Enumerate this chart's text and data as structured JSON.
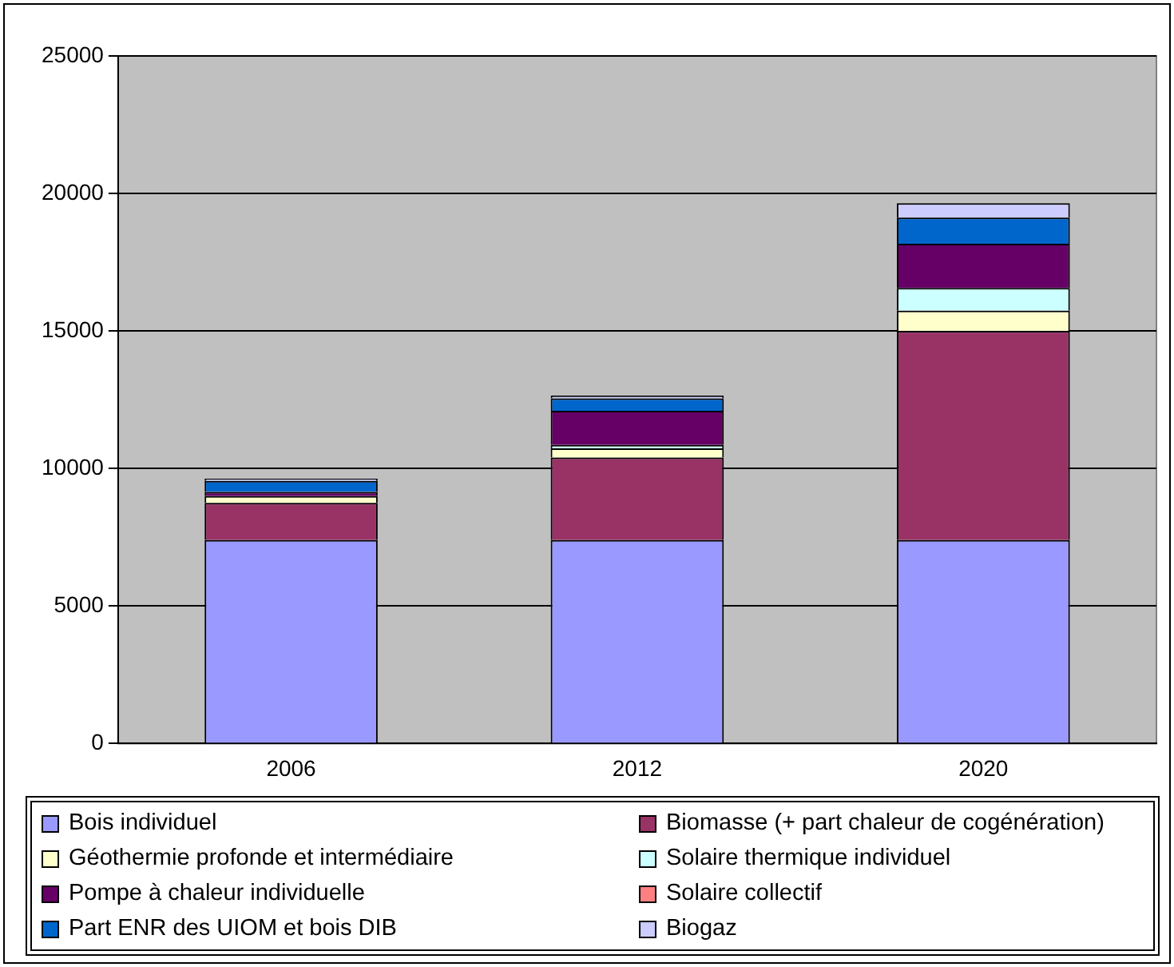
{
  "chart_data": {
    "type": "bar",
    "stacked": true,
    "categories": [
      "2006",
      "2012",
      "2020"
    ],
    "series": [
      {
        "name": "Bois individuel",
        "color": "#9999ff",
        "values": [
          7400,
          7400,
          7400
        ]
      },
      {
        "name": "Biomasse (+ part chaleur de cogénération)",
        "color": "#993366",
        "values": [
          1350,
          3000,
          7600
        ]
      },
      {
        "name": "Géothermie profonde et intermédiaire",
        "color": "#ffffcc",
        "values": [
          250,
          330,
          740
        ]
      },
      {
        "name": "Solaire thermique individuel",
        "color": "#ccffff",
        "values": [
          null,
          130,
          830
        ]
      },
      {
        "name": "Pompe à chaleur individuelle",
        "color": "#660066",
        "values": [
          150,
          1240,
          1600
        ]
      },
      {
        "name": "Solaire collectif",
        "color": "#ff8080",
        "values": [
          null,
          null,
          null
        ]
      },
      {
        "name": "Part ENR des UIOM et bois DIB",
        "color": "#0066cc",
        "values": [
          400,
          450,
          950
        ]
      },
      {
        "name": "Biogaz",
        "color": "#ccccff",
        "values": [
          80,
          100,
          530
        ]
      }
    ],
    "ylim": [
      0,
      25000
    ],
    "yticks": [
      0,
      5000,
      10000,
      15000,
      20000,
      25000
    ],
    "grid": "y",
    "legend": "bottom"
  }
}
